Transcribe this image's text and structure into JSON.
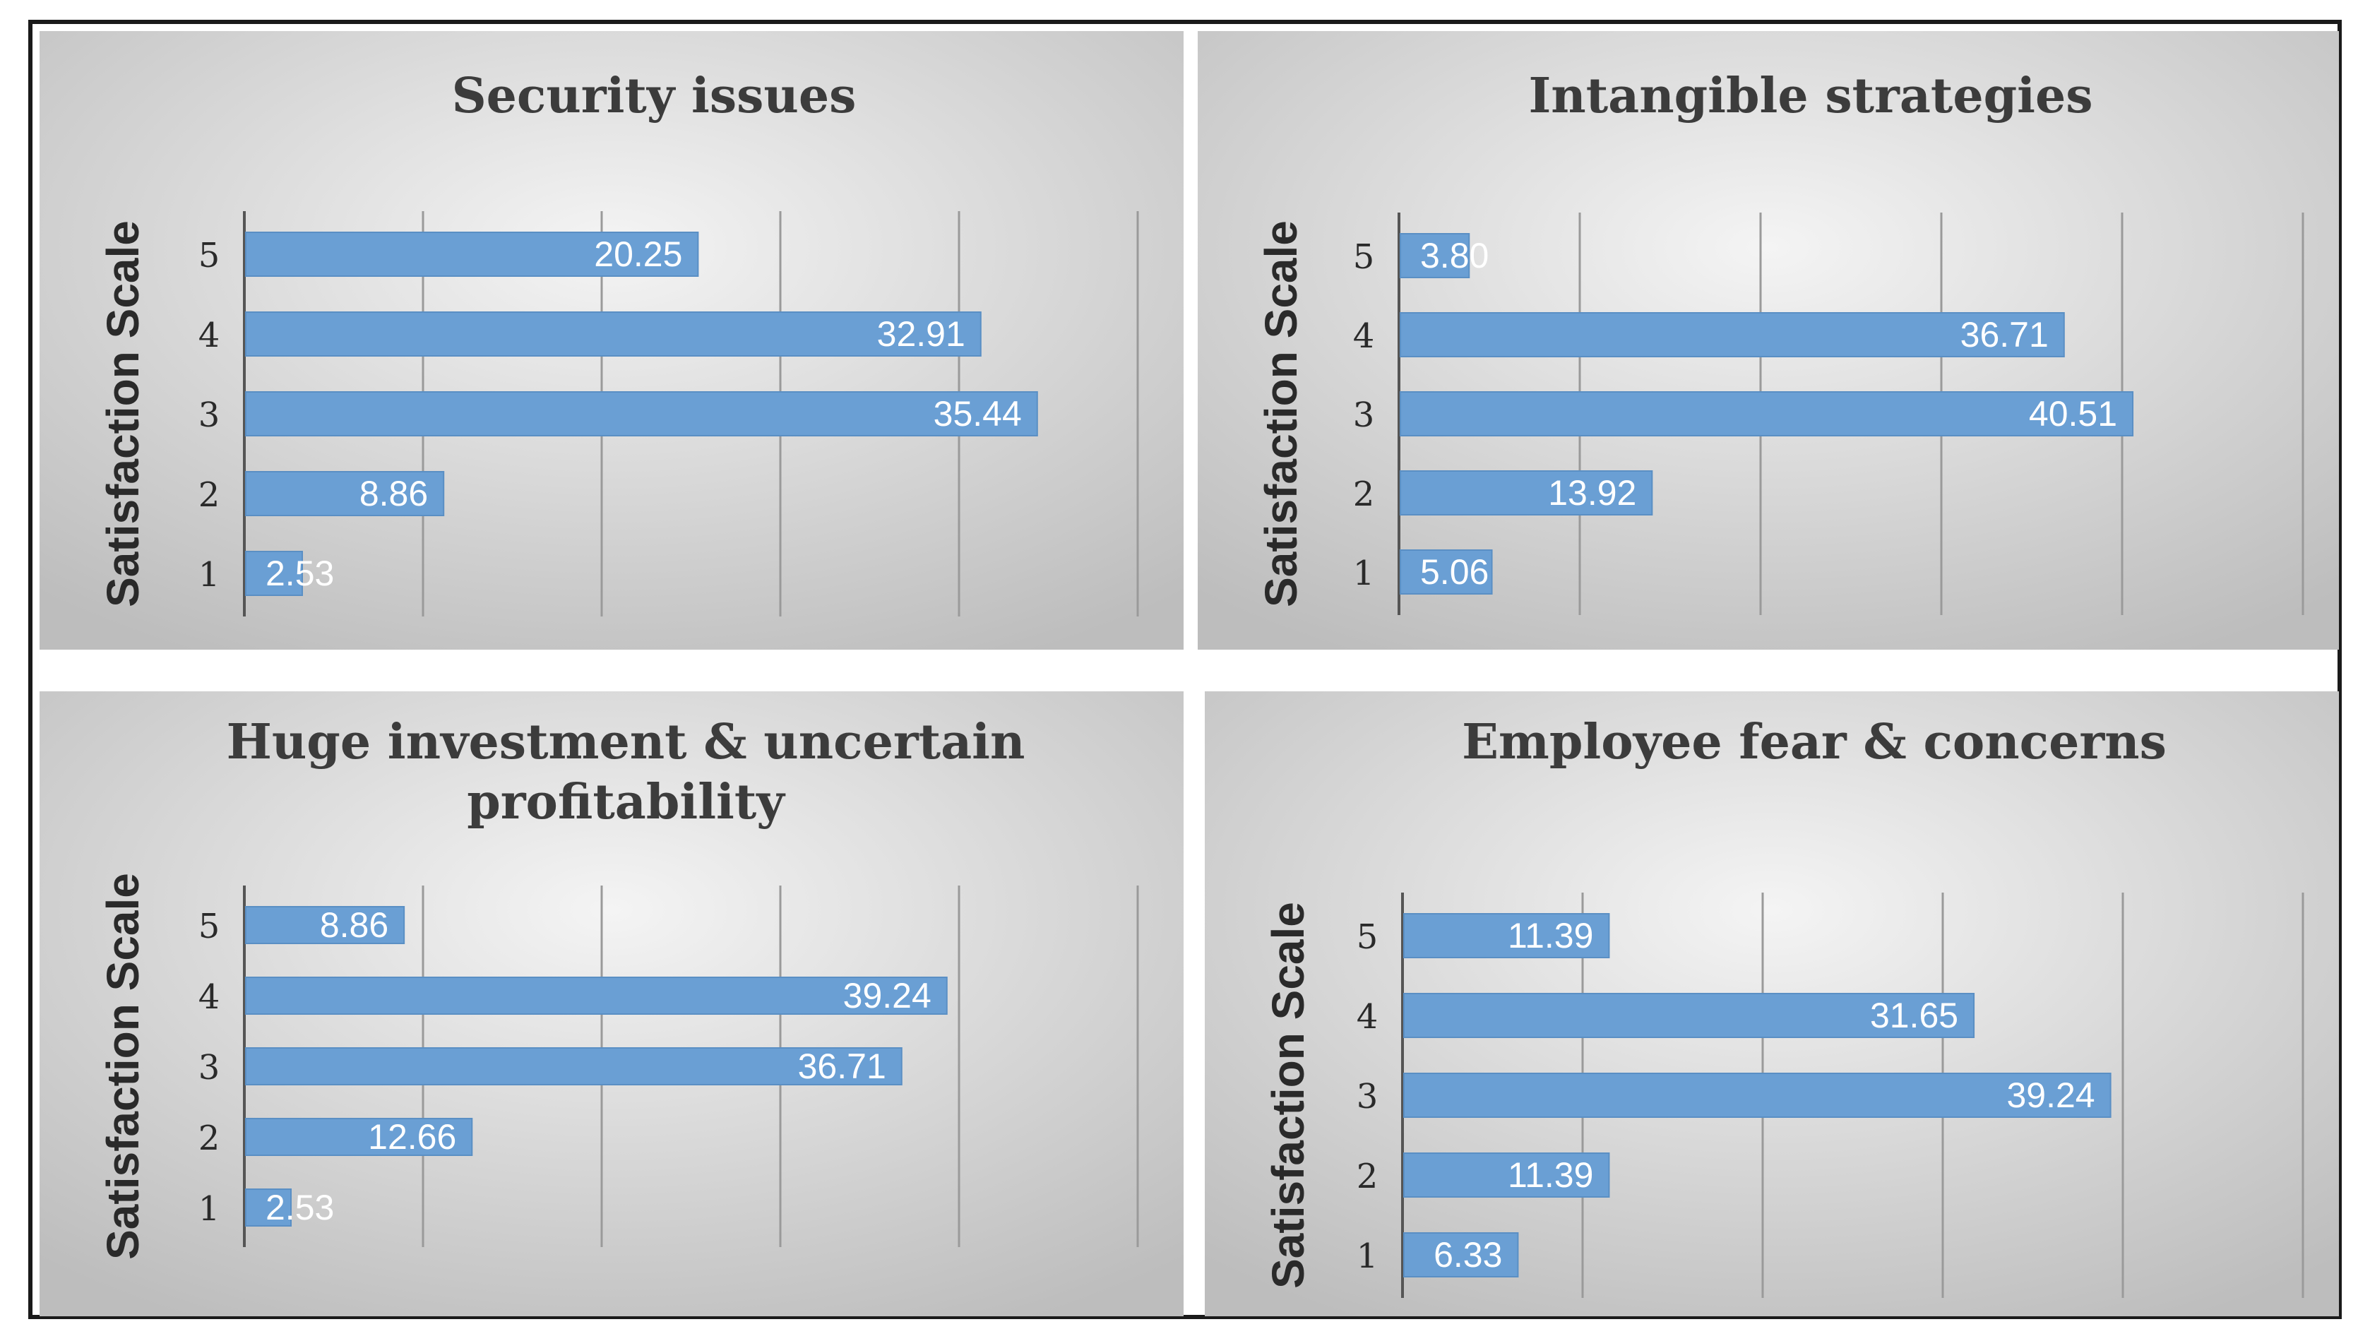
{
  "colors": {
    "bar": "#6a9fd4",
    "bar_edge": "#5a8fc4",
    "label": "#ffffff",
    "title": "#3c3c3c",
    "axis_text": "#2a2a2a",
    "gridline": "#9a9a9a",
    "panel_light": "#f4f4f4",
    "panel_dark": "#bdbdbd"
  },
  "chart_data": [
    {
      "type": "bar",
      "orientation": "horizontal",
      "title": "Security issues",
      "title_lines": [
        "Security issues"
      ],
      "ylabel": "Satisfaction Scale",
      "xlabel": "",
      "categories": [
        "1",
        "2",
        "3",
        "4",
        "5"
      ],
      "values": [
        2.53,
        8.86,
        35.44,
        32.91,
        20.25
      ],
      "data_labels": [
        "2.53",
        "8.86",
        "35.44",
        "32.91",
        "20.25"
      ],
      "xlim": [
        0,
        40
      ],
      "gridlines": true,
      "x_tick_labels_visible": false
    },
    {
      "type": "bar",
      "orientation": "horizontal",
      "title": "Intangible strategies",
      "title_lines": [
        "Intangible strategies"
      ],
      "ylabel": "Satisfaction Scale",
      "xlabel": "",
      "categories": [
        "1",
        "2",
        "3",
        "4",
        "5"
      ],
      "values": [
        5.06,
        13.92,
        40.51,
        36.71,
        3.8
      ],
      "data_labels": [
        "5.06",
        "13.92",
        "40.51",
        "36.71",
        "3.80"
      ],
      "xlim": [
        0,
        50
      ],
      "gridlines": true,
      "x_tick_labels_visible": false
    },
    {
      "type": "bar",
      "orientation": "horizontal",
      "title": "Huge investment & uncertain profitability",
      "title_lines": [
        "Huge investment & uncertain",
        "profitability"
      ],
      "ylabel": "Satisfaction Scale",
      "xlabel": "",
      "categories": [
        "1",
        "2",
        "3",
        "4",
        "5"
      ],
      "values": [
        2.53,
        12.66,
        36.71,
        39.24,
        8.86
      ],
      "data_labels": [
        "2.53",
        "12.66",
        "36.71",
        "39.24",
        "8.86"
      ],
      "xlim": [
        0,
        50
      ],
      "gridlines": true,
      "x_tick_labels_visible": false
    },
    {
      "type": "bar",
      "orientation": "horizontal",
      "title": "Employee fear & concerns",
      "title_lines": [
        "Employee fear & concerns"
      ],
      "ylabel": "Satisfaction Scale",
      "xlabel": "",
      "categories": [
        "1",
        "2",
        "3",
        "4",
        "5"
      ],
      "values": [
        6.33,
        11.39,
        39.24,
        31.65,
        11.39
      ],
      "data_labels": [
        "6.33",
        "11.39",
        "39.24",
        "31.65",
        "11.39"
      ],
      "xlim": [
        0,
        50
      ],
      "gridlines": true,
      "x_tick_labels_visible": false
    }
  ]
}
